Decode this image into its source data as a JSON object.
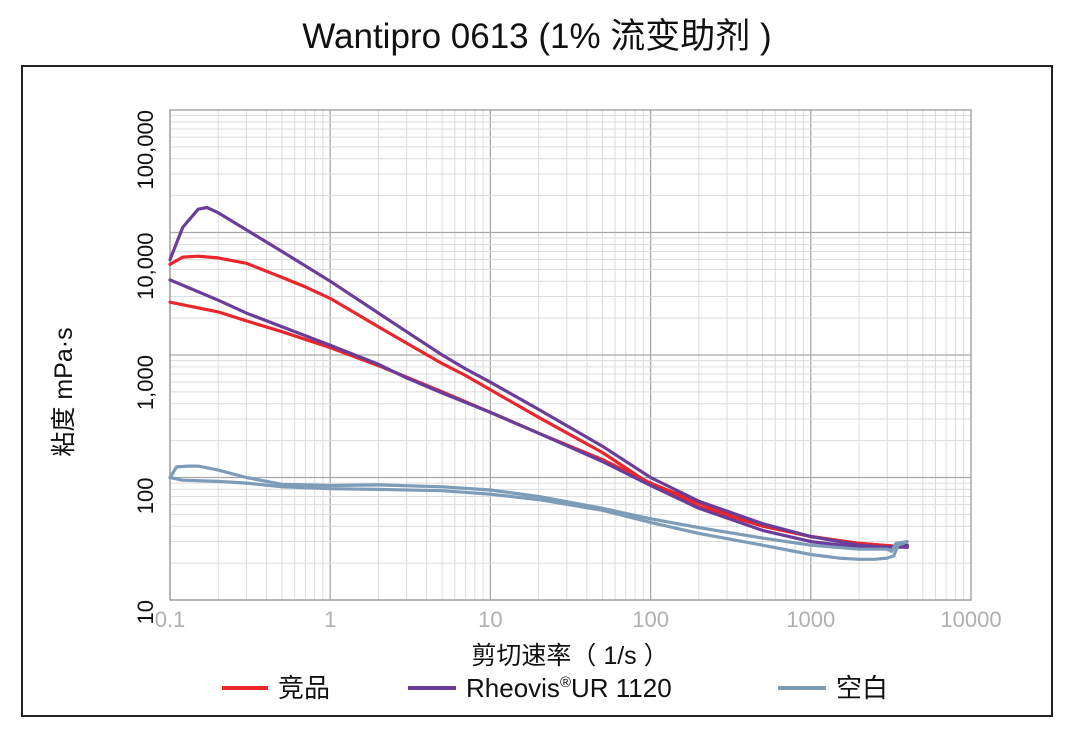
{
  "chart_data": {
    "type": "line",
    "title": "Wantipro 0613 (1% 流变助剂 )",
    "xlabel": "剪切速率（ 1/s ）",
    "ylabel": "粘度 mPa·s",
    "x_scale": "log",
    "y_scale": "log",
    "xlim": [
      0.1,
      10000
    ],
    "ylim": [
      10,
      100000
    ],
    "x_ticks": [
      "0.1",
      "1",
      "10",
      "100",
      "1000",
      "10000"
    ],
    "y_ticks": [
      "10",
      "100",
      "1,000",
      "10,000",
      "100,000"
    ],
    "grid": true,
    "legend_position": "bottom",
    "series": [
      {
        "name": "竞品",
        "color": "#e8262b",
        "curves": [
          {
            "x": [
              0.1,
              0.12,
              0.15,
              0.2,
              0.3,
              0.5,
              0.7,
              1,
              2,
              3,
              5,
              7,
              10,
              20,
              50,
              100,
              200,
              500,
              1000,
              2000,
              4000
            ],
            "y": [
              5500,
              6300,
              6400,
              6200,
              5600,
              4300,
              3600,
              2900,
              1700,
              1250,
              850,
              680,
              520,
              310,
              160,
              88,
              58,
              40,
              33,
              29,
              27
            ]
          },
          {
            "x": [
              0.1,
              0.2,
              0.3,
              0.5,
              1,
              2,
              3,
              5,
              10,
              20,
              50,
              100,
              200,
              500,
              1000,
              2000,
              4000
            ],
            "y": [
              2700,
              2250,
              1900,
              1550,
              1150,
              820,
              660,
              500,
              340,
              230,
              140,
              90,
              62,
              41,
              33,
              29,
              27
            ]
          }
        ]
      },
      {
        "name": "Rheovis®UR 1120",
        "color": "#6b3d9a",
        "name_main": "Rheovis",
        "name_sup": "®",
        "name_rest": "UR 1120",
        "curves": [
          {
            "x": [
              0.1,
              0.12,
              0.15,
              0.17,
              0.2,
              0.3,
              0.5,
              1,
              2,
              3,
              5,
              7,
              10,
              20,
              50,
              100,
              200,
              500,
              1000,
              2000,
              3000,
              4000
            ],
            "y": [
              6000,
              11000,
              15500,
              16000,
              14500,
              10500,
              7000,
              4000,
              2200,
              1550,
              1000,
              770,
              600,
              360,
              180,
              100,
              64,
              42,
              33,
              28,
              27,
              28
            ]
          },
          {
            "x": [
              0.1,
              0.2,
              0.3,
              0.5,
              1,
              2,
              3,
              5,
              10,
              20,
              50,
              100,
              200,
              500,
              1000,
              2000,
              4000
            ],
            "y": [
              4100,
              2800,
              2200,
              1700,
              1200,
              840,
              650,
              490,
              340,
              230,
              135,
              86,
              56,
              37,
              30,
              27,
              27
            ]
          }
        ]
      },
      {
        "name": "空白",
        "color": "#7d9cb8",
        "curves": [
          {
            "x": [
              0.1,
              0.11,
              0.13,
              0.15,
              0.2,
              0.3,
              0.5,
              1,
              2,
              5,
              10,
              20,
              50,
              100,
              200,
              500,
              1000,
              2000,
              3000,
              3200,
              3400,
              4000
            ],
            "y": [
              100,
              122,
              124,
              124,
              115,
              100,
              88,
              86,
              87,
              84,
              79,
              70,
              56,
              46,
              39,
              32,
              28,
              26,
              26,
              25,
              29,
              30
            ]
          },
          {
            "x": [
              0.1,
              0.12,
              0.2,
              0.3,
              0.5,
              1,
              2,
              5,
              10,
              20,
              50,
              100,
              200,
              500,
              1000,
              1500,
              2000,
              2500,
              3000,
              3300,
              3500,
              4000
            ],
            "y": [
              100,
              95,
              93,
              90,
              84,
              81,
              80,
              78,
              73,
              66,
              54,
              43,
              35,
              28,
              23.5,
              22,
              21.5,
              21.5,
              22,
              23,
              28,
              30
            ]
          }
        ]
      }
    ]
  }
}
